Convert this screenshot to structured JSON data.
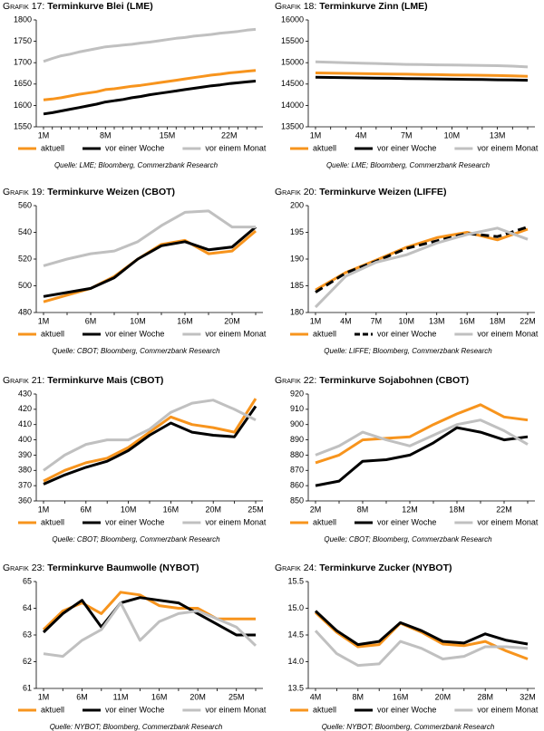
{
  "chart_data": [
    {
      "type": "line",
      "label": "Grafik 17:",
      "title": "Terminkurve Blei (LME)",
      "source": "Quelle: LME; Bloomberg, Commerzbank Research",
      "legend": "bottom",
      "categories": [
        "1M",
        null,
        null,
        null,
        null,
        null,
        null,
        "8M",
        null,
        null,
        null,
        null,
        null,
        null,
        "15M",
        null,
        null,
        null,
        null,
        null,
        null,
        "22M",
        null,
        null,
        null
      ],
      "ylim": [
        1550,
        1800
      ],
      "yticks": [
        1550,
        1600,
        1650,
        1700,
        1750,
        1800
      ],
      "series": [
        {
          "name": "aktuell",
          "color": "#f7941d",
          "values": [
            1613,
            1615,
            1618,
            1622,
            1626,
            1629,
            1632,
            1637,
            1639,
            1642,
            1645,
            1647,
            1650,
            1653,
            1656,
            1659,
            1662,
            1665,
            1668,
            1671,
            1673,
            1676,
            1678,
            1680,
            1682
          ]
        },
        {
          "name": "vor einer Woche",
          "color": "#000000",
          "values": [
            1580,
            1583,
            1587,
            1591,
            1595,
            1599,
            1603,
            1608,
            1611,
            1614,
            1618,
            1621,
            1625,
            1628,
            1631,
            1634,
            1637,
            1640,
            1643,
            1646,
            1648,
            1651,
            1653,
            1655,
            1657
          ]
        },
        {
          "name": "vor einem Monat",
          "color": "#c0c0c0",
          "values": [
            1703,
            1710,
            1716,
            1720,
            1725,
            1729,
            1733,
            1737,
            1739,
            1741,
            1743,
            1746,
            1748,
            1751,
            1754,
            1757,
            1759,
            1762,
            1764,
            1766,
            1769,
            1771,
            1773,
            1776,
            1778
          ]
        }
      ]
    },
    {
      "type": "line",
      "label": "Grafik 18:",
      "title": "Terminkurve Zinn (LME)",
      "source": "Quelle: LME; Bloomberg, Commerzbank Research",
      "legend": "bottom",
      "categories": [
        "1M",
        null,
        null,
        "4M",
        null,
        null,
        "7M",
        null,
        null,
        "10M",
        null,
        null,
        "13M",
        null,
        null
      ],
      "ylim": [
        13500,
        16000
      ],
      "yticks": [
        13500,
        14000,
        14500,
        15000,
        15500,
        16000
      ],
      "series": [
        {
          "name": "aktuell",
          "color": "#f7941d",
          "values": [
            14760,
            14755,
            14750,
            14745,
            14740,
            14735,
            14730,
            14725,
            14720,
            14715,
            14710,
            14705,
            14700,
            14690,
            14680
          ]
        },
        {
          "name": "vor einer Woche",
          "color": "#000000",
          "values": [
            14660,
            14655,
            14650,
            14645,
            14640,
            14635,
            14630,
            14625,
            14620,
            14615,
            14610,
            14605,
            14600,
            14595,
            14590
          ]
        },
        {
          "name": "vor einem Monat",
          "color": "#c0c0c0",
          "values": [
            15020,
            15010,
            15000,
            14990,
            14980,
            14970,
            14960,
            14955,
            14950,
            14945,
            14940,
            14935,
            14930,
            14920,
            14900
          ]
        }
      ]
    },
    {
      "type": "line",
      "label": "Grafik 19:",
      "title": "Terminkurve Weizen (CBOT)",
      "source": "Quelle: CBOT; Bloomberg, Commerzbank Research",
      "legend": "bottom",
      "categories": [
        "1M",
        null,
        "6M",
        null,
        "10M",
        null,
        "16M",
        null,
        "20M",
        null
      ],
      "ylim": [
        480,
        560
      ],
      "yticks": [
        480,
        500,
        520,
        540,
        560
      ],
      "series": [
        {
          "name": "aktuell",
          "color": "#f7941d",
          "values": [
            488,
            493,
            498,
            507,
            520,
            531,
            534,
            524,
            526,
            541
          ]
        },
        {
          "name": "vor einer Woche",
          "color": "#000000",
          "values": [
            492,
            495,
            498,
            506,
            520,
            530,
            533,
            527,
            529,
            544
          ]
        },
        {
          "name": "vor einem Monat",
          "color": "#c0c0c0",
          "values": [
            515,
            520,
            524,
            526,
            533,
            545,
            555,
            556,
            544,
            544
          ]
        }
      ]
    },
    {
      "type": "line",
      "label": "Grafik 20:",
      "title": "Terminkurve Weizen (LIFFE)",
      "source": "Quelle: LIFFE; Bloomberg, Commerzbank Research",
      "legend": "bottom",
      "categories": [
        "1M",
        "4M",
        "7M",
        "10M",
        "13M",
        "16M",
        "18M",
        "22M"
      ],
      "ylim": [
        180,
        200
      ],
      "yticks": [
        180,
        185,
        190,
        195,
        200
      ],
      "series": [
        {
          "name": "aktuell",
          "color": "#f7941d",
          "values": [
            184.2,
            187.5,
            189.8,
            192.2,
            194.0,
            195.0,
            193.6,
            195.6
          ]
        },
        {
          "name": "vor einer Woche",
          "color": "#000000",
          "dash": true,
          "values": [
            183.8,
            187.4,
            189.6,
            192.0,
            193.4,
            194.8,
            194.2,
            196.0
          ]
        },
        {
          "name": "vor einem Monat",
          "color": "#c0c0c0",
          "values": [
            181.0,
            186.8,
            189.4,
            190.8,
            193.0,
            194.6,
            195.8,
            193.7
          ]
        }
      ]
    },
    {
      "type": "line",
      "label": "Grafik 21:",
      "title": "Terminkurve Mais (CBOT)",
      "source": "Quelle: CBOT; Bloomberg, Commerzbank Research",
      "legend": "bottom",
      "categories": [
        "1M",
        null,
        "6M",
        null,
        "10M",
        null,
        "16M",
        null,
        "20M",
        null,
        "25M"
      ],
      "ylim": [
        360,
        430
      ],
      "yticks": [
        360,
        370,
        380,
        390,
        400,
        410,
        420,
        430
      ],
      "series": [
        {
          "name": "aktuell",
          "color": "#f7941d",
          "values": [
            373,
            380,
            385,
            388,
            395,
            405,
            415,
            410,
            408,
            405,
            427
          ]
        },
        {
          "name": "vor einer Woche",
          "color": "#000000",
          "values": [
            371,
            377,
            382,
            386,
            393,
            403,
            411,
            405,
            403,
            402,
            422
          ]
        },
        {
          "name": "vor einem Monat",
          "color": "#c0c0c0",
          "values": [
            380,
            390,
            397,
            400,
            400,
            407,
            418,
            424,
            426,
            420,
            413
          ]
        }
      ]
    },
    {
      "type": "line",
      "label": "Grafik 22:",
      "title": "Terminkurve Sojabohnen (CBOT)",
      "source": "Quelle: CBOT; Bloomberg, Commerzbank Research",
      "legend": "bottom",
      "categories": [
        "2M",
        null,
        "8M",
        null,
        "12M",
        null,
        "18M",
        null,
        "22M",
        null
      ],
      "ylim": [
        850,
        920
      ],
      "yticks": [
        850,
        860,
        870,
        880,
        890,
        900,
        910,
        920
      ],
      "series": [
        {
          "name": "aktuell",
          "color": "#f7941d",
          "values": [
            875,
            880,
            890,
            891,
            892,
            900,
            907,
            913,
            905,
            903
          ]
        },
        {
          "name": "vor einer Woche",
          "color": "#000000",
          "values": [
            860,
            863,
            876,
            877,
            880,
            888,
            898,
            895,
            890,
            892
          ]
        },
        {
          "name": "vor einem Monat",
          "color": "#c0c0c0",
          "values": [
            880,
            886,
            895,
            890,
            886,
            893,
            900,
            903,
            896,
            887
          ]
        }
      ]
    },
    {
      "type": "line",
      "label": "Grafik 23:",
      "title": "Terminkurve Baumwolle (NYBOT)",
      "source": "Quelle: NYBOT; Bloomberg, Commerzbank Research",
      "legend": "bottom",
      "categories": [
        "1M",
        null,
        "6M",
        null,
        "11M",
        null,
        "16M",
        null,
        "20M",
        null,
        "25M",
        null
      ],
      "ylim": [
        61,
        65
      ],
      "yticks": [
        61,
        62,
        63,
        64,
        65
      ],
      "series": [
        {
          "name": "aktuell",
          "color": "#f7941d",
          "values": [
            63.2,
            63.9,
            64.2,
            63.8,
            64.6,
            64.5,
            64.1,
            64.0,
            64.0,
            63.6,
            63.6,
            63.6
          ]
        },
        {
          "name": "vor einer Woche",
          "color": "#000000",
          "values": [
            63.1,
            63.8,
            64.3,
            63.3,
            64.2,
            64.4,
            64.3,
            64.2,
            63.8,
            63.4,
            63.0,
            63.0
          ]
        },
        {
          "name": "vor einem Monat",
          "color": "#c0c0c0",
          "values": [
            62.3,
            62.2,
            62.8,
            63.2,
            64.2,
            62.8,
            63.5,
            63.8,
            63.9,
            63.6,
            63.3,
            62.6
          ]
        }
      ]
    },
    {
      "type": "line",
      "label": "Grafik 24:",
      "title": "Terminkurve Zucker (NYBOT)",
      "source": "Quelle: NYBOT; Bloomberg, Commerzbank Research",
      "legend": "bottom",
      "categories": [
        "4M",
        null,
        "8M",
        null,
        "16M",
        null,
        "20M",
        null,
        "28M",
        null,
        "32M"
      ],
      "ylim": [
        13.5,
        15.5
      ],
      "yticks": [
        13.5,
        {
          "value": 14,
          "label": "14.0"
        },
        14.5,
        {
          "value": 15,
          "label": "15.0"
        },
        15.5
      ],
      "series": [
        {
          "name": "aktuell",
          "color": "#f7941d",
          "values": [
            14.92,
            14.55,
            14.28,
            14.32,
            14.72,
            14.55,
            14.33,
            14.3,
            14.38,
            14.2,
            14.05
          ]
        },
        {
          "name": "vor einer Woche",
          "color": "#000000",
          "values": [
            14.95,
            14.58,
            14.32,
            14.38,
            14.73,
            14.58,
            14.38,
            14.35,
            14.52,
            14.4,
            14.33
          ]
        },
        {
          "name": "vor einem Monat",
          "color": "#c0c0c0",
          "values": [
            14.58,
            14.15,
            13.93,
            13.96,
            14.38,
            14.25,
            14.05,
            14.1,
            14.28,
            14.28,
            14.25
          ]
        }
      ]
    }
  ]
}
